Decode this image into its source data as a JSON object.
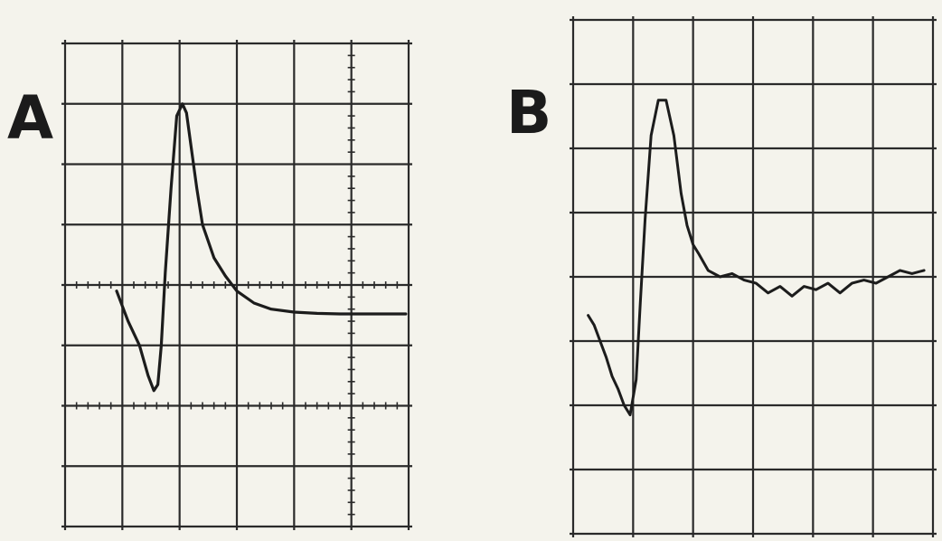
{
  "panels": [
    {
      "id": "A",
      "label": "A"
    },
    {
      "id": "B",
      "label": "B"
    }
  ],
  "chart_data": [
    {
      "type": "line",
      "panel": "A",
      "title": "",
      "xlabel": "",
      "ylabel": "",
      "grid": true,
      "x_divisions": 6,
      "y_divisions": 8,
      "xlim": [
        0,
        6
      ],
      "ylim": [
        -4,
        4
      ],
      "series": [
        {
          "x": [
            0.9,
            1.1,
            1.3,
            1.45,
            1.55,
            1.62,
            1.68,
            1.75,
            1.85,
            1.95,
            2.05,
            2.12,
            2.2,
            2.3,
            2.4,
            2.6,
            2.8,
            3.0,
            3.3,
            3.6,
            4.0,
            4.4,
            4.8,
            5.2,
            5.6,
            5.95
          ],
          "y": [
            -0.1,
            -0.6,
            -1.0,
            -1.5,
            -1.75,
            -1.65,
            -1.0,
            0.2,
            1.6,
            2.8,
            3.0,
            2.85,
            2.3,
            1.6,
            1.0,
            0.45,
            0.15,
            -0.1,
            -0.3,
            -0.4,
            -0.45,
            -0.47,
            -0.48,
            -0.48,
            -0.48,
            -0.48
          ]
        }
      ]
    },
    {
      "type": "line",
      "panel": "B",
      "title": "",
      "xlabel": "",
      "ylabel": "",
      "grid": true,
      "x_divisions": 6,
      "y_divisions": 8,
      "xlim": [
        0,
        6
      ],
      "ylim": [
        -4,
        4
      ],
      "series": [
        {
          "x": [
            0.25,
            0.35,
            0.45,
            0.55,
            0.65,
            0.75,
            0.85,
            0.95,
            1.05,
            1.12,
            1.2,
            1.3,
            1.42,
            1.55,
            1.68,
            1.8,
            1.9,
            2.0,
            2.1,
            2.25,
            2.45,
            2.65,
            2.85,
            3.05,
            3.25,
            3.45,
            3.65,
            3.85,
            4.05,
            4.25,
            4.45,
            4.65,
            4.85,
            5.05,
            5.25,
            5.45,
            5.65,
            5.85
          ],
          "y": [
            -0.6,
            -0.75,
            -1.0,
            -1.25,
            -1.55,
            -1.75,
            -2.0,
            -2.15,
            -1.6,
            -0.4,
            0.9,
            2.2,
            2.75,
            2.75,
            2.2,
            1.3,
            0.8,
            0.5,
            0.35,
            0.1,
            0.0,
            0.05,
            -0.05,
            -0.1,
            -0.25,
            -0.15,
            -0.3,
            -0.15,
            -0.2,
            -0.1,
            -0.25,
            -0.1,
            -0.05,
            -0.1,
            0.0,
            0.1,
            0.05,
            0.1
          ]
        }
      ]
    }
  ]
}
